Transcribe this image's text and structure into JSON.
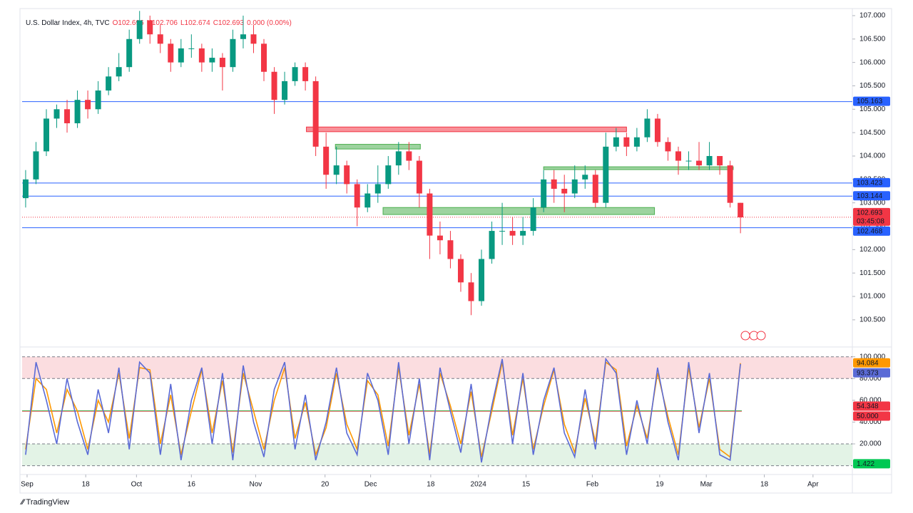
{
  "header": {
    "symbol": "U.S. Dollar Index, 4h, TVC",
    "open": "O102.696",
    "high": "H102.706",
    "low": "L102.674",
    "close": "C102.693",
    "change": "0.000 (0.00%)"
  },
  "footer": {
    "brand": "TradingView"
  },
  "chart_data": [
    {
      "type": "candlestick",
      "up_color": "#089981",
      "down_color": "#f23645",
      "open": [
        103.1,
        103.5,
        104.1,
        104.8,
        105.0,
        104.7,
        105.2,
        105.0,
        105.4,
        105.7,
        105.9,
        106.5,
        106.9,
        106.6,
        106.4,
        106.0,
        106.3,
        106.3,
        106.0,
        106.1,
        105.9,
        106.5,
        106.6,
        106.4,
        105.8,
        105.2,
        105.6,
        105.9,
        105.6,
        104.2,
        103.6,
        103.8,
        103.4,
        102.9,
        103.2,
        103.4,
        103.8,
        104.1,
        103.9,
        103.2,
        102.3,
        102.2,
        101.8,
        101.3,
        100.9,
        101.8,
        102.4,
        102.4,
        102.3,
        102.4,
        102.9,
        103.5,
        103.3,
        103.2,
        103.5,
        103.6,
        103.0,
        104.2,
        104.4,
        104.2,
        104.4,
        104.8,
        104.3,
        104.1,
        103.9,
        103.9,
        103.8,
        104.0,
        103.8,
        103.0
      ],
      "high": [
        103.7,
        104.3,
        105.0,
        105.1,
        105.2,
        105.4,
        105.4,
        105.6,
        105.9,
        106.2,
        106.7,
        107.1,
        107.0,
        106.8,
        106.5,
        106.5,
        106.6,
        106.4,
        106.3,
        106.2,
        106.7,
        107.0,
        106.8,
        106.5,
        105.9,
        105.8,
        106.0,
        106.0,
        105.7,
        104.5,
        104.2,
        103.9,
        103.5,
        103.4,
        103.8,
        104.0,
        104.3,
        104.3,
        104.0,
        103.3,
        102.6,
        102.4,
        101.9,
        101.5,
        102.0,
        102.6,
        103.0,
        102.7,
        102.7,
        103.1,
        103.7,
        103.7,
        103.6,
        103.8,
        103.8,
        103.7,
        104.5,
        104.6,
        104.5,
        104.6,
        105.0,
        104.9,
        104.4,
        104.2,
        104.1,
        104.3,
        104.3,
        104.0,
        103.9,
        103.0
      ],
      "low": [
        102.9,
        103.4,
        104.0,
        104.6,
        104.5,
        104.6,
        104.8,
        104.9,
        105.3,
        105.6,
        105.8,
        106.4,
        106.4,
        106.2,
        105.8,
        105.9,
        106.1,
        105.8,
        105.8,
        105.4,
        105.8,
        106.3,
        106.2,
        105.6,
        104.9,
        105.1,
        105.5,
        105.4,
        104.0,
        103.3,
        103.4,
        103.2,
        102.5,
        102.8,
        103.0,
        103.3,
        103.6,
        103.7,
        102.9,
        101.8,
        101.9,
        101.6,
        101.1,
        100.6,
        100.8,
        101.7,
        102.1,
        102.1,
        102.1,
        102.3,
        102.8,
        103.0,
        102.8,
        103.1,
        103.3,
        102.9,
        102.9,
        104.1,
        104.0,
        104.1,
        104.3,
        104.2,
        103.9,
        103.6,
        103.7,
        103.7,
        103.7,
        103.6,
        102.9,
        102.35
      ],
      "close": [
        103.5,
        104.1,
        104.8,
        105.0,
        104.7,
        105.2,
        105.0,
        105.4,
        105.7,
        105.9,
        106.5,
        106.9,
        106.6,
        106.4,
        106.0,
        106.3,
        106.3,
        106.0,
        106.1,
        105.9,
        106.5,
        106.6,
        106.4,
        105.8,
        105.2,
        105.6,
        105.9,
        105.6,
        104.2,
        103.6,
        103.8,
        103.4,
        102.9,
        103.2,
        103.4,
        103.8,
        104.1,
        103.9,
        103.2,
        102.3,
        102.2,
        101.8,
        101.3,
        100.9,
        101.8,
        102.4,
        102.4,
        102.3,
        102.4,
        102.9,
        103.5,
        103.3,
        103.2,
        103.5,
        103.6,
        103.0,
        104.2,
        104.4,
        104.2,
        104.4,
        104.8,
        104.3,
        104.1,
        103.9,
        103.9,
        103.8,
        104.0,
        103.8,
        103.0,
        102.69
      ],
      "xlim": [
        -0.34,
        79.8
      ],
      "xticks": [
        {
          "value": 0.14,
          "label": "Sep"
        },
        {
          "value": 5.8,
          "label": "18"
        },
        {
          "value": 10.7,
          "label": "Oct"
        },
        {
          "value": 16.0,
          "label": "16"
        },
        {
          "value": 22.2,
          "label": "Nov"
        },
        {
          "value": 28.9,
          "label": "20"
        },
        {
          "value": 33.3,
          "label": "Dec"
        },
        {
          "value": 39.1,
          "label": "18"
        },
        {
          "value": 43.7,
          "label": "2024"
        },
        {
          "value": 48.3,
          "label": "15"
        },
        {
          "value": 54.7,
          "label": "Feb"
        },
        {
          "value": 61.2,
          "label": "19"
        },
        {
          "value": 65.7,
          "label": "Mar"
        },
        {
          "value": 71.3,
          "label": "18"
        },
        {
          "value": 76.0,
          "label": "Apr"
        }
      ],
      "ylim": [
        99.95,
        107.06
      ],
      "yticks": [
        {
          "value": 100.5,
          "label": "100.500"
        },
        {
          "value": 101.0,
          "label": "101.000"
        },
        {
          "value": 101.5,
          "label": "101.500"
        },
        {
          "value": 102.0,
          "label": "102.000"
        },
        {
          "value": 102.5,
          "label": "102.500"
        },
        {
          "value": 103.0,
          "label": "103.000"
        },
        {
          "value": 103.5,
          "label": "103.500"
        },
        {
          "value": 104.0,
          "label": "104.000"
        },
        {
          "value": 104.5,
          "label": "104.500"
        },
        {
          "value": 105.0,
          "label": "105.000"
        },
        {
          "value": 105.5,
          "label": "105.500"
        },
        {
          "value": 106.0,
          "label": "106.000"
        },
        {
          "value": 106.5,
          "label": "106.500"
        },
        {
          "value": 107.0,
          "label": "107.000"
        }
      ],
      "grid": false,
      "levels": [
        {
          "value": 105.163,
          "label": "105.163",
          "color": "#2962ff"
        },
        {
          "value": 103.423,
          "label": "103.423",
          "color": "#2962ff"
        },
        {
          "value": 103.144,
          "label": "103.144",
          "color": "#2962ff"
        },
        {
          "value": 102.468,
          "label": "102.468",
          "color": "#2962ff"
        }
      ],
      "last_price": {
        "value": 102.693,
        "label": "102.693",
        "countdown": "03:45:08",
        "color": "#f23645"
      },
      "zones": [
        {
          "x": [
            27.1,
            58.0
          ],
          "y": [
            104.52,
            104.62
          ],
          "color": "#f23645"
        },
        {
          "x": [
            29.9,
            38.1
          ],
          "y": [
            104.15,
            104.25
          ],
          "color": "#4caf50"
        },
        {
          "x": [
            50.0,
            68.3
          ],
          "y": [
            103.71,
            103.77
          ],
          "color": "#4caf50"
        },
        {
          "x": [
            34.5,
            60.7
          ],
          "y": [
            102.75,
            102.9
          ],
          "color": "#4caf50"
        }
      ]
    },
    {
      "type": "oscillator",
      "xlim": [
        -0.34,
        79.8
      ],
      "series": [
        {
          "color": "#5b6bd6",
          "values": [
            10,
            95,
            60,
            20,
            80,
            40,
            10,
            70,
            30,
            90,
            15,
            95,
            85,
            10,
            75,
            5,
            60,
            90,
            20,
            85,
            5,
            92,
            40,
            8,
            70,
            95,
            15,
            65,
            5,
            40,
            90,
            30,
            10,
            85,
            60,
            10,
            95,
            20,
            80,
            5,
            90,
            50,
            12,
            75,
            3,
            55,
            98,
            20,
            85,
            10,
            60,
            90,
            30,
            8,
            70,
            15,
            98,
            85,
            10,
            60,
            20,
            90,
            40,
            5,
            95,
            30,
            85,
            10,
            5,
            93.373
          ]
        },
        {
          "color": "#ff9800",
          "values": [
            15,
            80,
            70,
            30,
            70,
            50,
            15,
            60,
            40,
            85,
            25,
            90,
            88,
            20,
            65,
            10,
            50,
            88,
            30,
            78,
            12,
            85,
            50,
            15,
            60,
            90,
            25,
            58,
            10,
            35,
            85,
            38,
            15,
            78,
            65,
            18,
            90,
            28,
            75,
            10,
            85,
            55,
            20,
            68,
            8,
            50,
            95,
            28,
            80,
            15,
            55,
            88,
            38,
            12,
            62,
            22,
            95,
            88,
            18,
            55,
            25,
            85,
            45,
            10,
            90,
            35,
            80,
            15,
            8,
            94.084
          ]
        }
      ],
      "ylim": [
        -5.5,
        107
      ],
      "yticks": [
        {
          "value": 20,
          "label": "20.000"
        },
        {
          "value": 40,
          "label": "40.000"
        },
        {
          "value": 60,
          "label": "60.000"
        },
        {
          "value": 80,
          "label": "80.000"
        },
        {
          "value": 100,
          "label": "100.000"
        }
      ],
      "bands": [
        {
          "range": [
            80,
            100
          ],
          "color": "#fbdde0"
        },
        {
          "range": [
            0,
            20
          ],
          "color": "#e3f3e6"
        }
      ],
      "levels": [
        {
          "value": 50,
          "label": "50.000",
          "color": "#f23645"
        },
        {
          "value": 50.4,
          "color": "#4caf50"
        }
      ],
      "price_labels": [
        {
          "value": 94.084,
          "label": "94.084",
          "color": "#ff9800"
        },
        {
          "value": 93.373,
          "label": "93.373",
          "color": "#5b6bd6"
        },
        {
          "value": 54.348,
          "label": "54.348",
          "color": "#f23645"
        },
        {
          "value": 1.422,
          "label": "1.422",
          "color": "#00c853"
        }
      ]
    }
  ]
}
